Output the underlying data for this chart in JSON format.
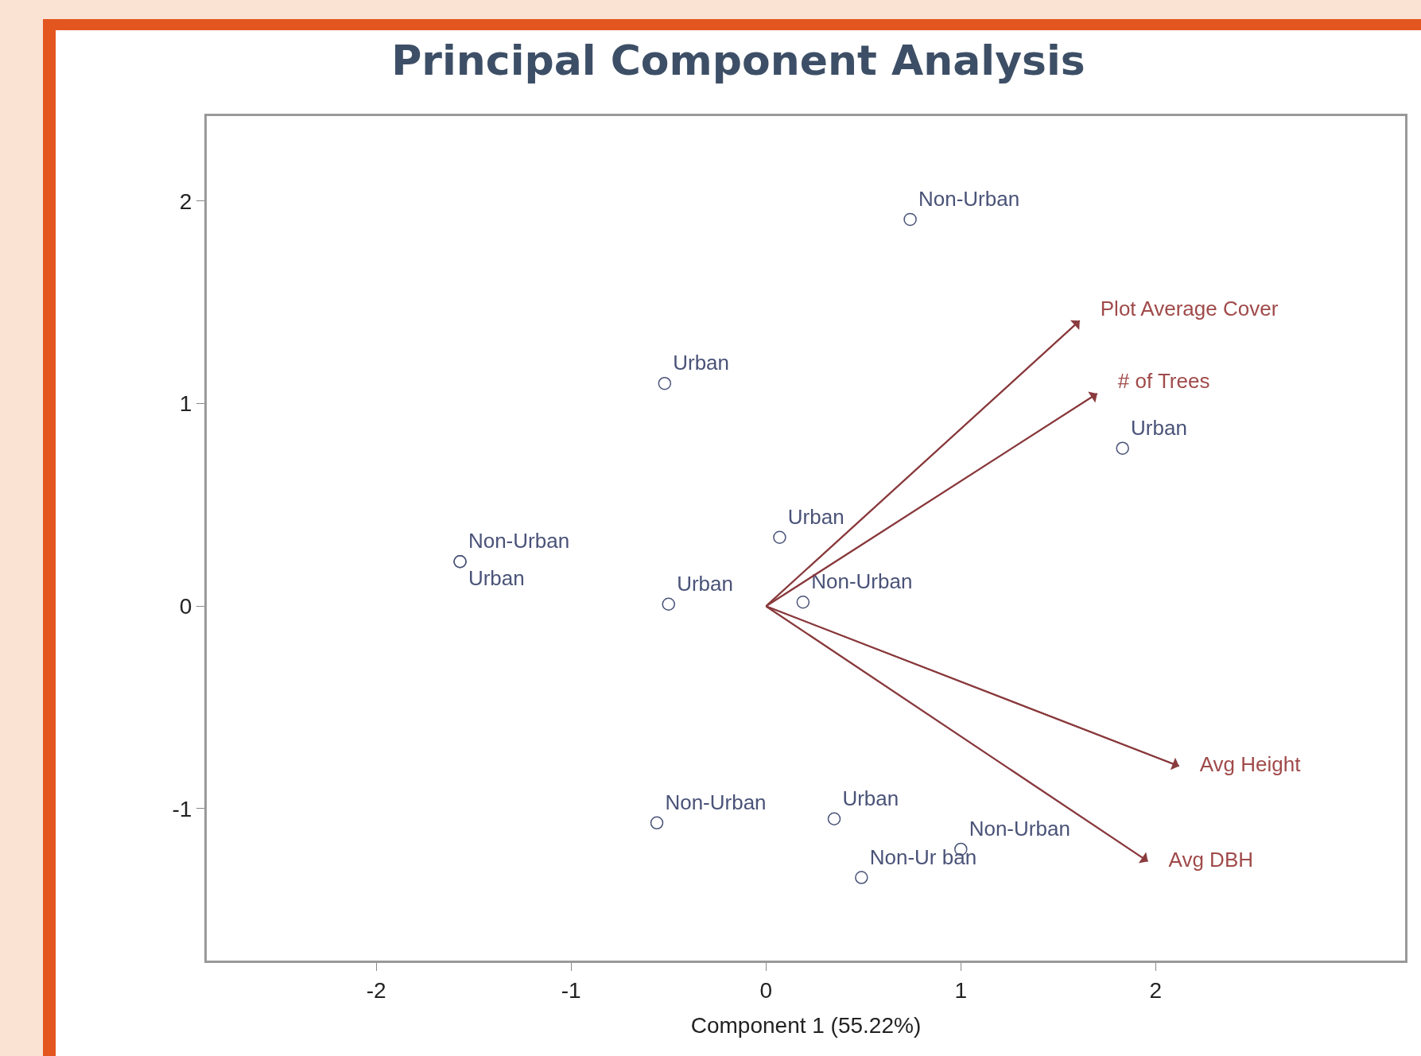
{
  "chart_data": {
    "type": "scatter",
    "title": "Principal Component Analysis",
    "xlabel": "Component 1 (55.22%)",
    "xlim": [
      -2.87,
      3.28
    ],
    "xticks": [
      -2,
      -1,
      0,
      1,
      2
    ],
    "ylim": [
      -1.75,
      2.42
    ],
    "yticks": [
      -1,
      0,
      1,
      2
    ],
    "grid": false,
    "marker": "circle",
    "series": [
      {
        "color": "#4a5378",
        "x": [
          0.74,
          -0.52,
          1.83,
          0.07,
          -1.57,
          -1.57,
          -0.5,
          0.19,
          -0.56,
          0.35,
          1.0,
          0.49
        ],
        "values": [
          1.91,
          1.1,
          0.78,
          0.34,
          0.22,
          0.22,
          0.01,
          0.02,
          -1.07,
          -1.05,
          -1.2,
          -1.34
        ],
        "value_labels": [
          "Non-Urban",
          "Urban",
          "Urban",
          "Urban",
          "Non-Urban",
          "Urban",
          "Urban",
          "Non-Urban",
          "Non-Urban",
          "Urban",
          "Non-Urban",
          "Non-Ur ban"
        ]
      },
      {
        "type": "line",
        "marker": "triangle",
        "name": "Plot Average Cover",
        "color": "#8a3b3e",
        "x": [
          0,
          1.61
        ],
        "values": [
          0,
          1.41
        ]
      },
      {
        "type": "line",
        "marker": "triangle",
        "name": "# of Trees",
        "color": "#8a3b3e",
        "x": [
          0,
          1.7
        ],
        "values": [
          0,
          1.05
        ]
      },
      {
        "type": "line",
        "marker": "triangle",
        "name": "Avg Height",
        "color": "#8a3b3e",
        "x": [
          0,
          2.12
        ],
        "values": [
          0,
          -0.79
        ]
      },
      {
        "type": "line",
        "marker": "triangle",
        "name": "Avg DBH",
        "color": "#8a3b3e",
        "x": [
          0,
          1.96
        ],
        "values": [
          0,
          -1.26
        ]
      }
    ]
  }
}
